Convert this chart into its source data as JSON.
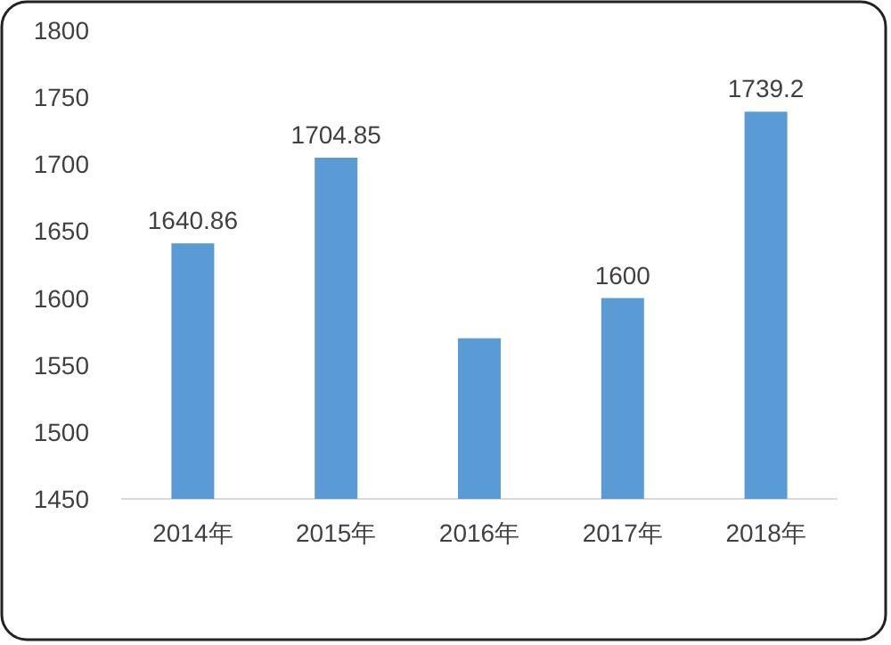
{
  "chart_data": {
    "type": "bar",
    "categories": [
      "2014年",
      "2015年",
      "2016年",
      "2017年",
      "2018年"
    ],
    "values": [
      1640.86,
      1704.85,
      1570,
      1600,
      1739.2
    ],
    "value_labels": [
      "1640.86",
      "1704.85",
      null,
      "1600",
      "1739.2"
    ],
    "color": "#5b9bd5",
    "ylim": [
      1450,
      1800
    ],
    "yticks": [
      1450,
      1500,
      1550,
      1600,
      1650,
      1700,
      1750,
      1800
    ],
    "grid": false
  }
}
